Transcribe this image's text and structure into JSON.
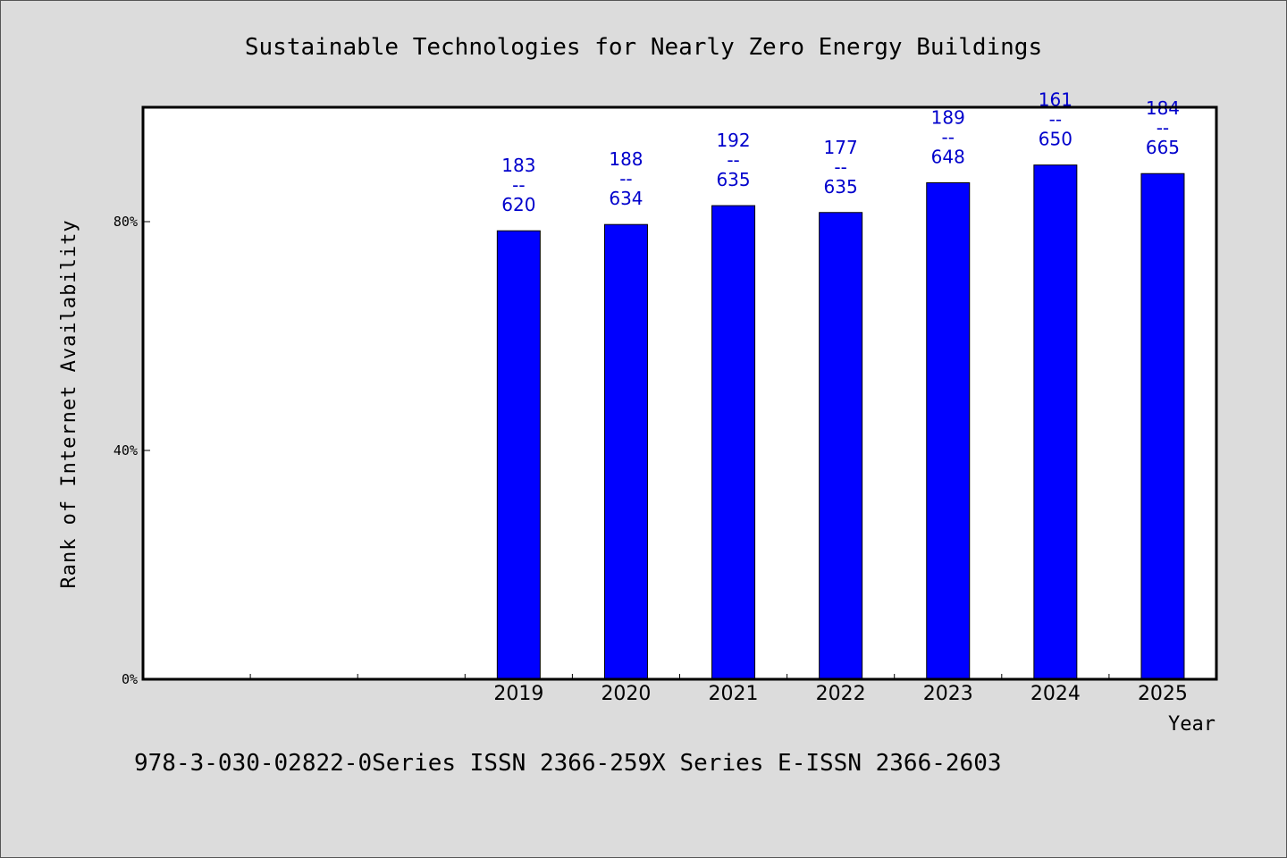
{
  "chart_data": {
    "type": "bar",
    "title": "Sustainable Technologies for Nearly Zero Energy Buildings",
    "ylabel": "Rank of Internet Availability",
    "xlabel": "Year",
    "categories": [
      "",
      "",
      "",
      "2019",
      "2020",
      "2021",
      "2022",
      "2023",
      "2024",
      "2025"
    ],
    "values": [
      null,
      null,
      null,
      78.4,
      79.5,
      82.8,
      81.6,
      86.8,
      89.9,
      88.4
    ],
    "data_labels": [
      null,
      null,
      null,
      [
        "183",
        "--",
        "620"
      ],
      [
        "188",
        "--",
        "634"
      ],
      [
        "192",
        "--",
        "635"
      ],
      [
        "177",
        "--",
        "635"
      ],
      [
        "189",
        "--",
        "648"
      ],
      [
        "161",
        "--",
        "650"
      ],
      [
        "184",
        "--",
        "665"
      ]
    ],
    "yticks": [
      {
        "value": 0,
        "label": "0%"
      },
      {
        "value": 40,
        "label": "40%"
      },
      {
        "value": 80,
        "label": "80%"
      }
    ],
    "ylim": [
      0,
      100
    ],
    "grid": false,
    "colors": {
      "bar": "#0000ff",
      "data_label": "#0000cc",
      "background": "#dcdcdc",
      "plot_background": "#ffffff"
    }
  },
  "footer": {
    "text": "978-3-030-02822-0Series ISSN 2366-259X Series E-ISSN 2366-2603"
  }
}
